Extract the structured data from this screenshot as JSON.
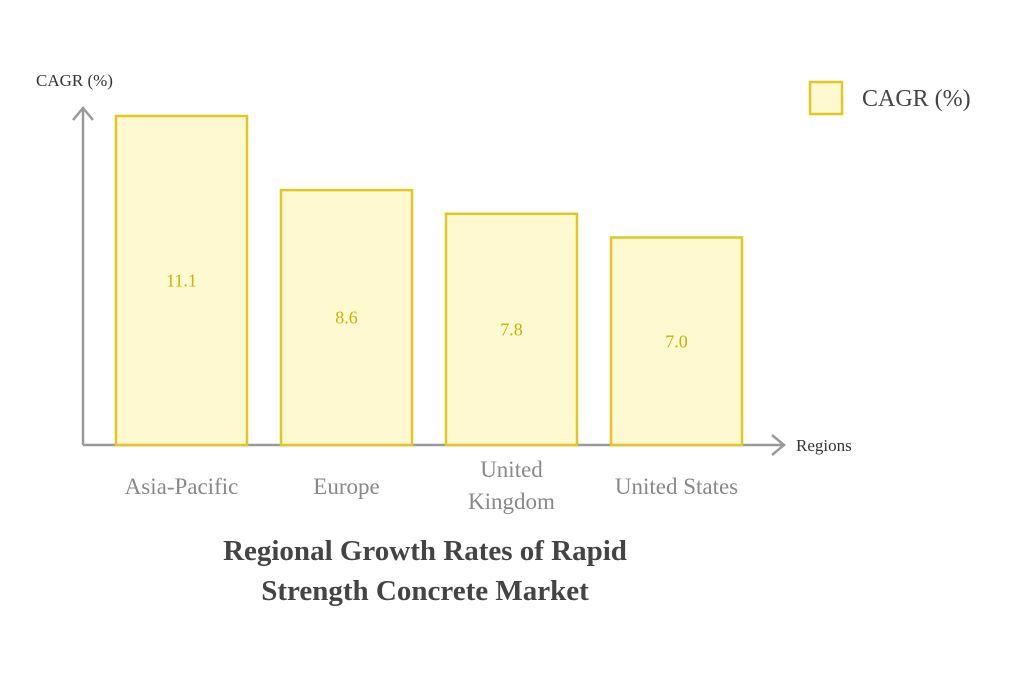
{
  "chart_data": {
    "type": "bar",
    "title_lines": [
      "Regional Growth Rates of Rapid",
      "Strength Concrete Market"
    ],
    "xlabel": "Regions",
    "ylabel": "CAGR (%)",
    "categories": [
      [
        "Asia-Pacific"
      ],
      [
        "Europe"
      ],
      [
        "United",
        "Kingdom"
      ],
      [
        "United States"
      ]
    ],
    "series": [
      {
        "name": "CAGR (%)",
        "values": [
          11.1,
          8.6,
          7.8,
          7.0
        ]
      }
    ],
    "value_labels": [
      "11.1",
      "8.6",
      "7.8",
      "7.0"
    ],
    "ylim": [
      0,
      11.1
    ],
    "grid": false,
    "legend_position": "top-right",
    "colors": {
      "bar_fill": "#fff9d2",
      "bar_stroke": "#e0c820",
      "value_text": "#c9b200",
      "axis": "#999999",
      "category_text": "#888888",
      "title_text": "#444444"
    }
  }
}
